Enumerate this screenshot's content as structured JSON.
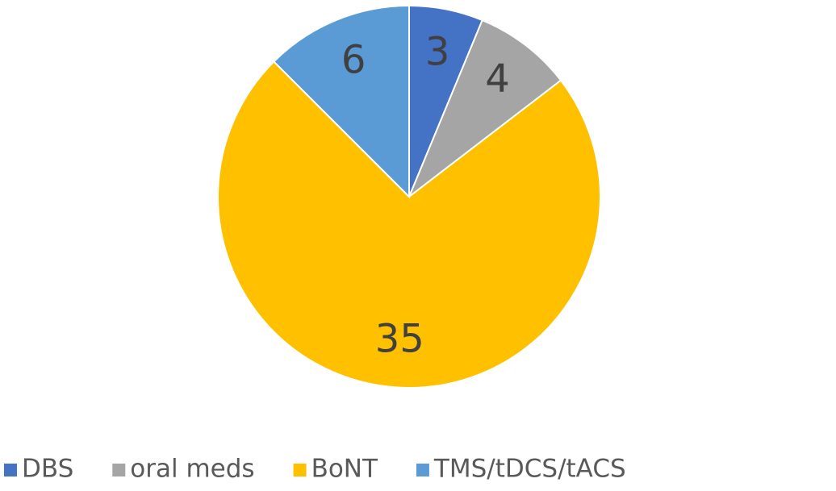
{
  "chart_data": {
    "type": "pie",
    "categories": [
      "DBS",
      "oral meds",
      "BoNT",
      "TMS/tDCS/tACS"
    ],
    "values": [
      3,
      4,
      35,
      6
    ],
    "colors": [
      "#4472c4",
      "#a5a5a5",
      "#ffc000",
      "#5b9bd5"
    ],
    "legend": "bottom"
  }
}
